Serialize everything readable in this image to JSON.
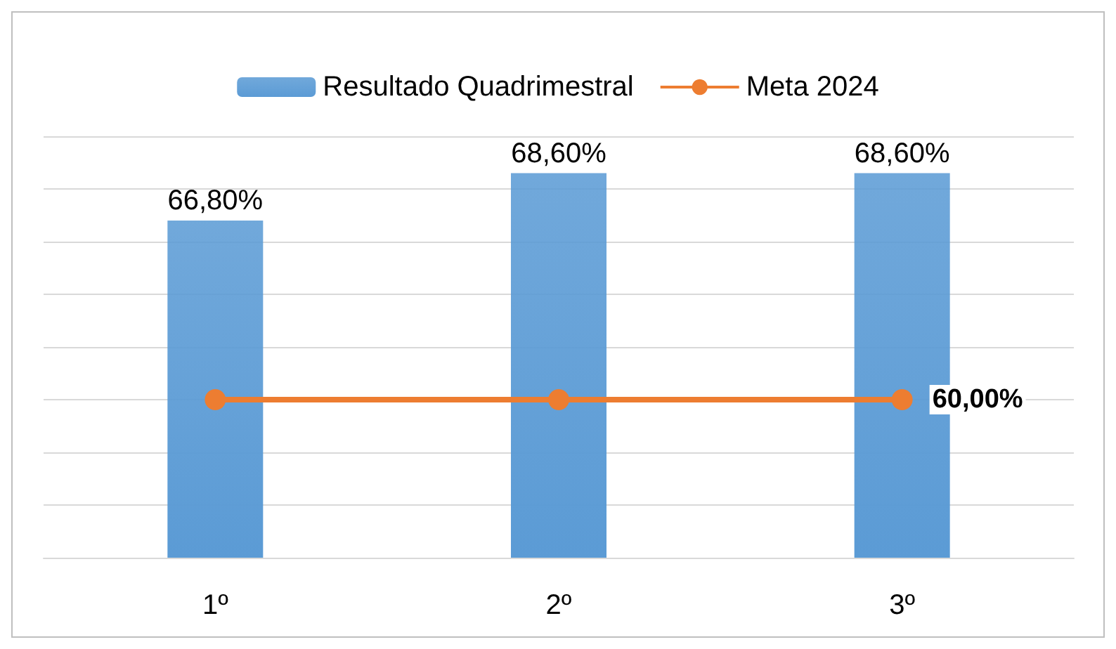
{
  "chart_data": {
    "type": "bar",
    "categories": [
      "1º",
      "2º",
      "3º"
    ],
    "series": [
      {
        "name": "Resultado Quadrimestral",
        "color": "#5b9bd5",
        "values": [
          66.8,
          68.6,
          68.6
        ],
        "value_labels": [
          "66,80%",
          "68,60%",
          "68,60%"
        ]
      },
      {
        "name": "Meta 2024",
        "type": "line",
        "color": "#ed7d31",
        "values": [
          60,
          60,
          60
        ],
        "value_labels": [
          null,
          null,
          "60,00%"
        ]
      }
    ],
    "ylim": [
      54,
      70
    ],
    "yticks": [
      54,
      56,
      58,
      60,
      62,
      64,
      66,
      68,
      70
    ],
    "grid": "y",
    "legend": "top",
    "marker": "circle",
    "tick_labels": "x"
  }
}
